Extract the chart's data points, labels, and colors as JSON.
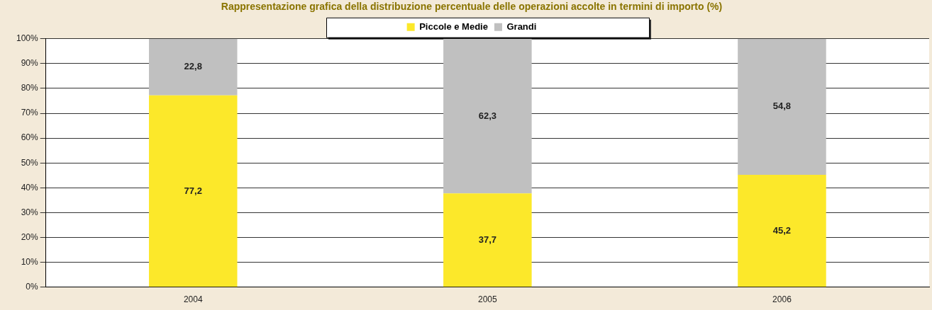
{
  "chart_data": {
    "type": "bar",
    "title": "Rappresentazione grafica della distribuzione percentuale delle operazioni accolte in termini di importo (%)",
    "categories": [
      "2004",
      "2005",
      "2006"
    ],
    "stacked": true,
    "series": [
      {
        "name": "Piccole e Medie",
        "color": "#fce82a",
        "values": [
          77.2,
          37.7,
          45.2
        ],
        "value_labels": [
          "77,2",
          "37,7",
          "45,2"
        ]
      },
      {
        "name": "Grandi",
        "color": "#c0c0c0",
        "values": [
          22.8,
          62.3,
          54.8
        ],
        "value_labels": [
          "22,8",
          "62,3",
          "54,8"
        ]
      }
    ],
    "ylim": [
      0,
      100
    ],
    "yticks": [
      {
        "value": 0,
        "label": "0%"
      },
      {
        "value": 10,
        "label": "10%"
      },
      {
        "value": 20,
        "label": "20%"
      },
      {
        "value": 30,
        "label": "30%"
      },
      {
        "value": 40,
        "label": "40%"
      },
      {
        "value": 50,
        "label": "50%"
      },
      {
        "value": 60,
        "label": "60%"
      },
      {
        "value": 70,
        "label": "70%"
      },
      {
        "value": 80,
        "label": "80%"
      },
      {
        "value": 90,
        "label": "90%"
      },
      {
        "value": 100,
        "label": "100%"
      }
    ],
    "grid": "y",
    "legend": "top"
  }
}
